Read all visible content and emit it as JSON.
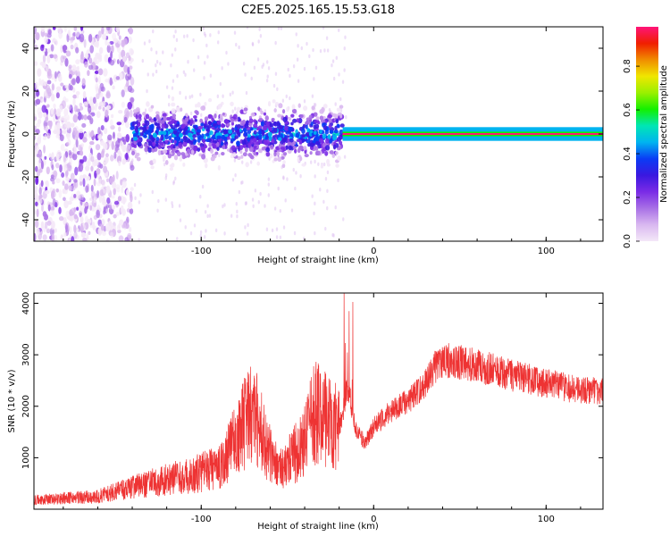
{
  "title": "C2E5.2025.165.15.53.G18",
  "colors": {
    "snr_line": "#ee3333",
    "axis": "#000000",
    "colorbar_stops": [
      "#f4e8f8",
      "#d9b8f0",
      "#a870e6",
      "#7a2be6",
      "#3a18e0",
      "#0a3cf5",
      "#00b4f0",
      "#00e6b4",
      "#14f000",
      "#9af000",
      "#f0e600",
      "#f08c00",
      "#f01e00",
      "#ff1478"
    ]
  },
  "chart_data": [
    {
      "type": "heatmap",
      "xlabel": "Height of straight line (km)",
      "ylabel": "Frequency (Hz)",
      "xlim": [
        -197,
        133
      ],
      "ylim": [
        -50,
        50
      ],
      "xticks": [
        -100,
        0,
        100
      ],
      "yticks": [
        -40,
        -20,
        0,
        20,
        40
      ],
      "colorbar": {
        "label": "Normalized spectral amplitude",
        "range": [
          0,
          0.98
        ],
        "ticks": [
          0.0,
          0.2,
          0.4,
          0.6,
          0.8
        ]
      },
      "features": [
        {
          "x_range": [
            -197,
            -140
          ],
          "freq_range": [
            -50,
            50
          ],
          "amplitude": 0.12
        },
        {
          "x_range": [
            -140,
            -18
          ],
          "freq_range": [
            -15,
            12
          ],
          "amplitude": 0.4
        },
        {
          "x_range": [
            -18,
            133
          ],
          "freq_range": [
            -2,
            2
          ],
          "amplitude": 0.95
        }
      ]
    },
    {
      "type": "line",
      "xlabel": "Height of straight line (km)",
      "ylabel": "SNR (10 * v/v)",
      "xlim": [
        -197,
        133
      ],
      "ylim": [
        0,
        4200
      ],
      "xticks": [
        -100,
        0,
        100
      ],
      "yticks": [
        1000,
        2000,
        3000,
        4000
      ],
      "envelope": {
        "x": [
          -197,
          -160,
          -140,
          -130,
          -110,
          -90,
          -80,
          -75,
          -70,
          -65,
          -60,
          -55,
          -50,
          -40,
          -35,
          -30,
          -20,
          -15,
          -12,
          -10,
          -5,
          0,
          10,
          20,
          30,
          35,
          40,
          60,
          80,
          100,
          120,
          133
        ],
        "y": [
          180,
          250,
          420,
          500,
          640,
          800,
          1350,
          1650,
          1900,
          1500,
          1050,
          850,
          930,
          1300,
          1900,
          1800,
          1550,
          2400,
          1850,
          1500,
          1300,
          1600,
          1900,
          2100,
          2450,
          2750,
          2900,
          2800,
          2600,
          2450,
          2300,
          2300
        ]
      }
    }
  ]
}
